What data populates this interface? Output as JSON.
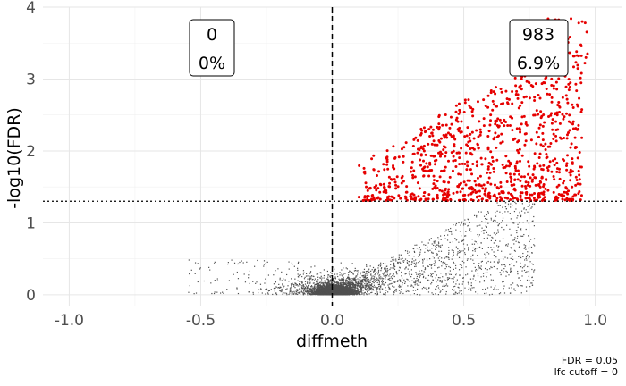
{
  "chart_data": {
    "type": "scatter",
    "title": "",
    "xlabel": "diffmeth",
    "ylabel": "-log10(FDR)",
    "xlim": [
      -1.1,
      1.1
    ],
    "ylim": [
      -0.15,
      4.0
    ],
    "x_ticks": [
      -1.0,
      -0.5,
      0.0,
      0.5,
      1.0
    ],
    "x_tick_labels": [
      "-1.0",
      "-0.5",
      "0.0",
      "0.5",
      "1.0"
    ],
    "y_ticks": [
      0,
      1,
      2,
      3,
      4
    ],
    "y_tick_labels": [
      "0",
      "1",
      "2",
      "3",
      "4"
    ],
    "grid": true,
    "thresholds": {
      "fdr_line_y": 1.301,
      "lfc_line_x": 0.0
    },
    "annotations": [
      {
        "name": "down",
        "count": "0",
        "percent": "0%"
      },
      {
        "name": "up",
        "count": "983",
        "percent": "6.9%"
      }
    ],
    "series": [
      {
        "color": "#505050",
        "approx_points": 5500,
        "description_range": {
          "x": [
            -0.55,
            0.82
          ],
          "y": [
            0,
            1.3
          ]
        }
      },
      {
        "color": "#e60000",
        "points": 983,
        "description_range": {
          "x": [
            0.1,
            0.98
          ],
          "y": [
            1.31,
            3.85
          ]
        }
      }
    ],
    "caption_lines": [
      "FDR  =  0.05",
      "lfc cutoff  =  0"
    ]
  }
}
